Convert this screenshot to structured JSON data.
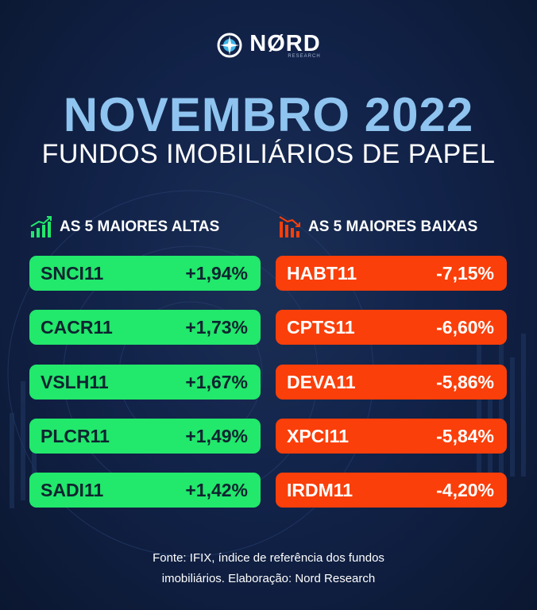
{
  "brand": {
    "name": "NØRD",
    "sub": "RESEARCH"
  },
  "title": "NOVEMBRO 2022",
  "subtitle": "FUNDOS IMOBILIÁRIOS DE PAPEL",
  "highs": {
    "header": "AS 5 MAIORES ALTAS",
    "items": [
      {
        "ticker": "SNCI11",
        "change": "+1,94%"
      },
      {
        "ticker": "CACR11",
        "change": "+1,73%"
      },
      {
        "ticker": "VSLH11",
        "change": "+1,67%"
      },
      {
        "ticker": "PLCR11",
        "change": "+1,49%"
      },
      {
        "ticker": "SADI11",
        "change": "+1,42%"
      }
    ]
  },
  "lows": {
    "header": "AS 5 MAIORES BAIXAS",
    "items": [
      {
        "ticker": "HABT11",
        "change": "-7,15%"
      },
      {
        "ticker": "CPTS11",
        "change": "-6,60%"
      },
      {
        "ticker": "DEVA11",
        "change": "-5,86%"
      },
      {
        "ticker": "XPCI11",
        "change": "-5,84%"
      },
      {
        "ticker": "IRDM11",
        "change": "-4,20%"
      }
    ]
  },
  "footer": {
    "line1": "Fonte: IFIX, índice de referência dos fundos",
    "line2": "imobiliários. Elaboração: Nord Research"
  },
  "colors": {
    "background": "#12234a",
    "title": "#8ec4ef",
    "up": "#22e86b",
    "down": "#fa3f0a",
    "up_text": "#0e2430"
  },
  "icons": {
    "brand": "compass-icon",
    "highs": "bar-chart-up-icon",
    "lows": "bar-chart-down-icon"
  }
}
